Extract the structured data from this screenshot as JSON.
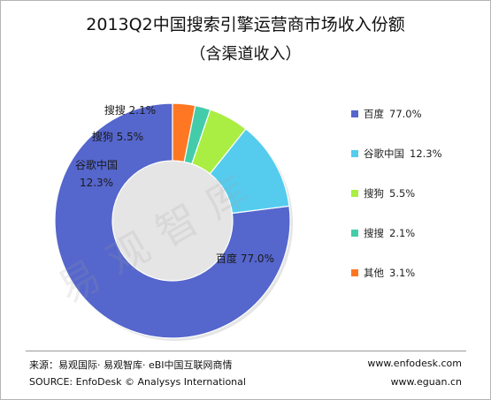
{
  "title": "2013Q2中国搜索引擎运营商市场收入份额",
  "subtitle": "（含渠道收入）",
  "watermark": "易观智库",
  "footer": {
    "source_cn": "来源：易观国际· 易观智库· eBI中国互联网商情",
    "source_en": "SOURCE: EnfoDesk © Analysys International",
    "url1": "www.enfodesk.com",
    "url2": "www.eguan.cn"
  },
  "chart_data": {
    "type": "pie",
    "title": "2013Q2中国搜索引擎运营商市场收入份额",
    "subtitle": "（含渠道收入）",
    "legend_position": "right",
    "slices": [
      {
        "label": "百度",
        "value": 77.0,
        "value_text": "77.0%",
        "color": "#5566CC"
      },
      {
        "label": "谷歌中国",
        "value": 12.3,
        "value_text": "12.3%",
        "color": "#55CCEE"
      },
      {
        "label": "搜狗",
        "value": 5.5,
        "value_text": "5.5%",
        "color": "#AAEE44"
      },
      {
        "label": "搜搜",
        "value": 2.1,
        "value_text": "2.1%",
        "color": "#44CCAA"
      },
      {
        "label": "其他",
        "value": 3.1,
        "value_text": "3.1%",
        "color": "#FF7722"
      }
    ]
  }
}
